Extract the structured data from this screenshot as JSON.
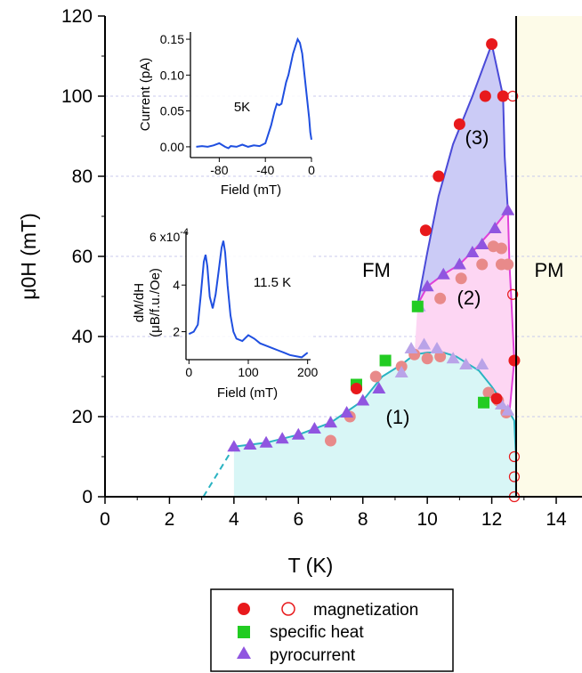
{
  "chart_data": {
    "type": "scatter",
    "title": "",
    "xlabel": "T (K)",
    "ylabel": "μ0H (mT)",
    "xlim": [
      0,
      14.8
    ],
    "ylim": [
      0,
      120
    ],
    "xticks": [
      0,
      2,
      4,
      6,
      8,
      10,
      12,
      14
    ],
    "yticks": [
      0,
      20,
      40,
      60,
      80,
      100,
      120
    ],
    "grid": true,
    "phase_boundary_T": 12.75,
    "phase_labels": {
      "fm": "FM",
      "pm": "PM"
    },
    "region_labels": [
      "(1)",
      "(2)",
      "(3)"
    ],
    "colors": {
      "magnetization": "#e8191c",
      "magnetization_light": "#e88a8a",
      "specific_heat": "#22cc22",
      "pyrocurrent": "#9055e0",
      "pyrocurrent_light": "#b9a3e8",
      "boundary_1": "#2ab3c2",
      "boundary_2": "#e040d8",
      "boundary_3": "#4a4ad8",
      "fill_1": "#d8f6f6",
      "fill_2": "#fdd6f3",
      "fill_3": "#cbcbf6",
      "pm_fill": "#fdfbe8"
    },
    "series": [
      {
        "name": "magnetization",
        "marker": "filled-circle",
        "points": [
          [
            12.0,
            113
          ],
          [
            11.8,
            100
          ],
          [
            12.35,
            100
          ],
          [
            11.0,
            93
          ],
          [
            10.35,
            80
          ],
          [
            9.95,
            66.5
          ],
          [
            12.7,
            34
          ],
          [
            7.8,
            27
          ],
          [
            12.15,
            24.5
          ]
        ]
      },
      {
        "name": "magnetization",
        "marker": "light-circle",
        "points": [
          [
            12.05,
            62.5
          ],
          [
            12.3,
            62
          ],
          [
            11.7,
            58
          ],
          [
            12.3,
            58
          ],
          [
            12.5,
            58
          ],
          [
            11.05,
            54.5
          ],
          [
            10.4,
            49.5
          ],
          [
            9.6,
            35.5
          ],
          [
            10.0,
            34.5
          ],
          [
            10.4,
            35
          ],
          [
            9.2,
            32.5
          ],
          [
            8.4,
            30
          ],
          [
            7.6,
            20
          ],
          [
            7.0,
            14
          ],
          [
            11.9,
            26
          ],
          [
            12.2,
            24
          ],
          [
            12.45,
            21
          ]
        ]
      },
      {
        "name": "magnetization",
        "marker": "open-circle",
        "points": [
          [
            12.65,
            100
          ],
          [
            12.65,
            50.5
          ],
          [
            12.7,
            10
          ],
          [
            12.7,
            5
          ],
          [
            12.7,
            0
          ]
        ]
      },
      {
        "name": "specific heat",
        "marker": "square",
        "points": [
          [
            9.7,
            47.5
          ],
          [
            7.8,
            28
          ],
          [
            8.7,
            34
          ],
          [
            11.75,
            23.5
          ]
        ]
      },
      {
        "name": "pyrocurrent",
        "marker": "triangle",
        "points": [
          [
            4.0,
            12.5
          ],
          [
            4.5,
            13
          ],
          [
            5.0,
            13.5
          ],
          [
            5.5,
            14.5
          ],
          [
            6.0,
            15.5
          ],
          [
            6.5,
            17
          ],
          [
            7.0,
            18.5
          ],
          [
            7.5,
            21
          ],
          [
            8.0,
            24
          ],
          [
            8.5,
            27
          ],
          [
            12.5,
            71.5
          ],
          [
            12.1,
            67
          ],
          [
            11.7,
            63
          ],
          [
            11.4,
            61
          ],
          [
            11.0,
            58
          ],
          [
            10.5,
            55.5
          ],
          [
            10.0,
            52.5
          ]
        ]
      },
      {
        "name": "pyrocurrent",
        "marker": "light-triangle",
        "points": [
          [
            9.2,
            31
          ],
          [
            9.5,
            37
          ],
          [
            9.9,
            38
          ],
          [
            10.3,
            37
          ],
          [
            10.8,
            34.5
          ],
          [
            11.2,
            33
          ],
          [
            11.7,
            33
          ],
          [
            12.3,
            23
          ],
          [
            12.5,
            21.5
          ],
          [
            9.75,
            47.5
          ]
        ]
      }
    ],
    "boundaries": {
      "line_1": [
        [
          4.0,
          12.5
        ],
        [
          4.5,
          13
        ],
        [
          5,
          13.5
        ],
        [
          6,
          15.5
        ],
        [
          7,
          18.5
        ],
        [
          8,
          24
        ],
        [
          8.6,
          30
        ],
        [
          9.2,
          33
        ],
        [
          9.6,
          35.5
        ],
        [
          10,
          36
        ],
        [
          10.5,
          36
        ],
        [
          10.9,
          35
        ],
        [
          11.2,
          33.5
        ],
        [
          11.6,
          31.5
        ],
        [
          12.0,
          27.5
        ],
        [
          12.3,
          24
        ],
        [
          12.55,
          21
        ],
        [
          12.7,
          19
        ],
        [
          12.75,
          10
        ],
        [
          12.75,
          0
        ]
      ],
      "line_1_dashed": [
        [
          3.05,
          0
        ],
        [
          4.0,
          12.5
        ]
      ],
      "line_2": [
        [
          9.7,
          48
        ],
        [
          10.0,
          52.5
        ],
        [
          10.5,
          55.5
        ],
        [
          11.0,
          58
        ],
        [
          11.5,
          62
        ],
        [
          12.0,
          66.5
        ],
        [
          12.5,
          71.5
        ],
        [
          12.55,
          58
        ],
        [
          12.6,
          50.5
        ],
        [
          12.7,
          34
        ],
        [
          12.55,
          21
        ]
      ],
      "line_3": [
        [
          9.7,
          48
        ],
        [
          10.0,
          61
        ],
        [
          10.35,
          75
        ],
        [
          10.8,
          88
        ],
        [
          11.4,
          100
        ],
        [
          12.0,
          113
        ],
        [
          12.35,
          100
        ],
        [
          12.4,
          85
        ],
        [
          12.5,
          71.5
        ]
      ]
    },
    "insets": [
      {
        "annotation": "5K",
        "xlabel": "Field (mT)",
        "ylabel": "Current (pA)",
        "xlim": [
          -105,
          0
        ],
        "ylim": [
          -0.015,
          0.16
        ],
        "xticks": [
          -80,
          -40,
          0
        ],
        "yticks": [
          0.0,
          0.05,
          0.1,
          0.15
        ],
        "ytick_labels": [
          "0.00",
          "0.05",
          "0.10",
          "0.15"
        ],
        "x": [
          -100,
          -95,
          -90,
          -85,
          -80,
          -75,
          -72,
          -70,
          -65,
          -60,
          -55,
          -50,
          -45,
          -40,
          -37,
          -35,
          -32,
          -30,
          -28,
          -26,
          -24,
          -22,
          -20,
          -18,
          -16,
          -14,
          -12,
          -10,
          -8,
          -6,
          -4,
          -2,
          -1,
          0
        ],
        "y": [
          0.0,
          0.001,
          0.0,
          0.002,
          0.005,
          0.0,
          -0.002,
          0.001,
          0.0,
          0.003,
          0.0,
          0.002,
          0.001,
          0.005,
          0.02,
          0.03,
          0.05,
          0.06,
          0.058,
          0.06,
          0.075,
          0.09,
          0.1,
          0.115,
          0.13,
          0.14,
          0.15,
          0.145,
          0.13,
          0.1,
          0.07,
          0.04,
          0.02,
          0.01
        ]
      },
      {
        "annotation": "11.5 K",
        "xlabel": "Field (mT)",
        "ylabel_line1": "dM/dH",
        "ylabel_line2": "(μB/f.u./Oe)",
        "ymax_label": "6 x10",
        "ymax_exponent": "-4",
        "xlim": [
          -5,
          205
        ],
        "ylim": [
          0.8,
          6.3
        ],
        "xticks": [
          0,
          100,
          200
        ],
        "yticks": [
          2,
          4
        ],
        "ytick_labels": [
          "2",
          "4"
        ],
        "x": [
          0,
          8,
          15,
          20,
          25,
          28,
          31,
          35,
          40,
          45,
          50,
          55,
          58,
          61,
          65,
          70,
          75,
          80,
          90,
          100,
          110,
          120,
          130,
          140,
          150,
          160,
          170,
          180,
          190,
          195,
          200
        ],
        "y": [
          1.9,
          2.0,
          2.3,
          3.6,
          5.0,
          5.3,
          4.8,
          3.5,
          3.0,
          3.6,
          4.6,
          5.6,
          5.9,
          5.4,
          4.0,
          2.7,
          2.0,
          1.7,
          1.6,
          1.85,
          1.7,
          1.5,
          1.4,
          1.3,
          1.2,
          1.1,
          1.0,
          0.95,
          0.9,
          1.0,
          1.1
        ]
      }
    ],
    "legend": {
      "placement": "bottom-center",
      "entries": [
        "magnetization",
        "specific heat",
        "pyrocurrent"
      ]
    }
  }
}
